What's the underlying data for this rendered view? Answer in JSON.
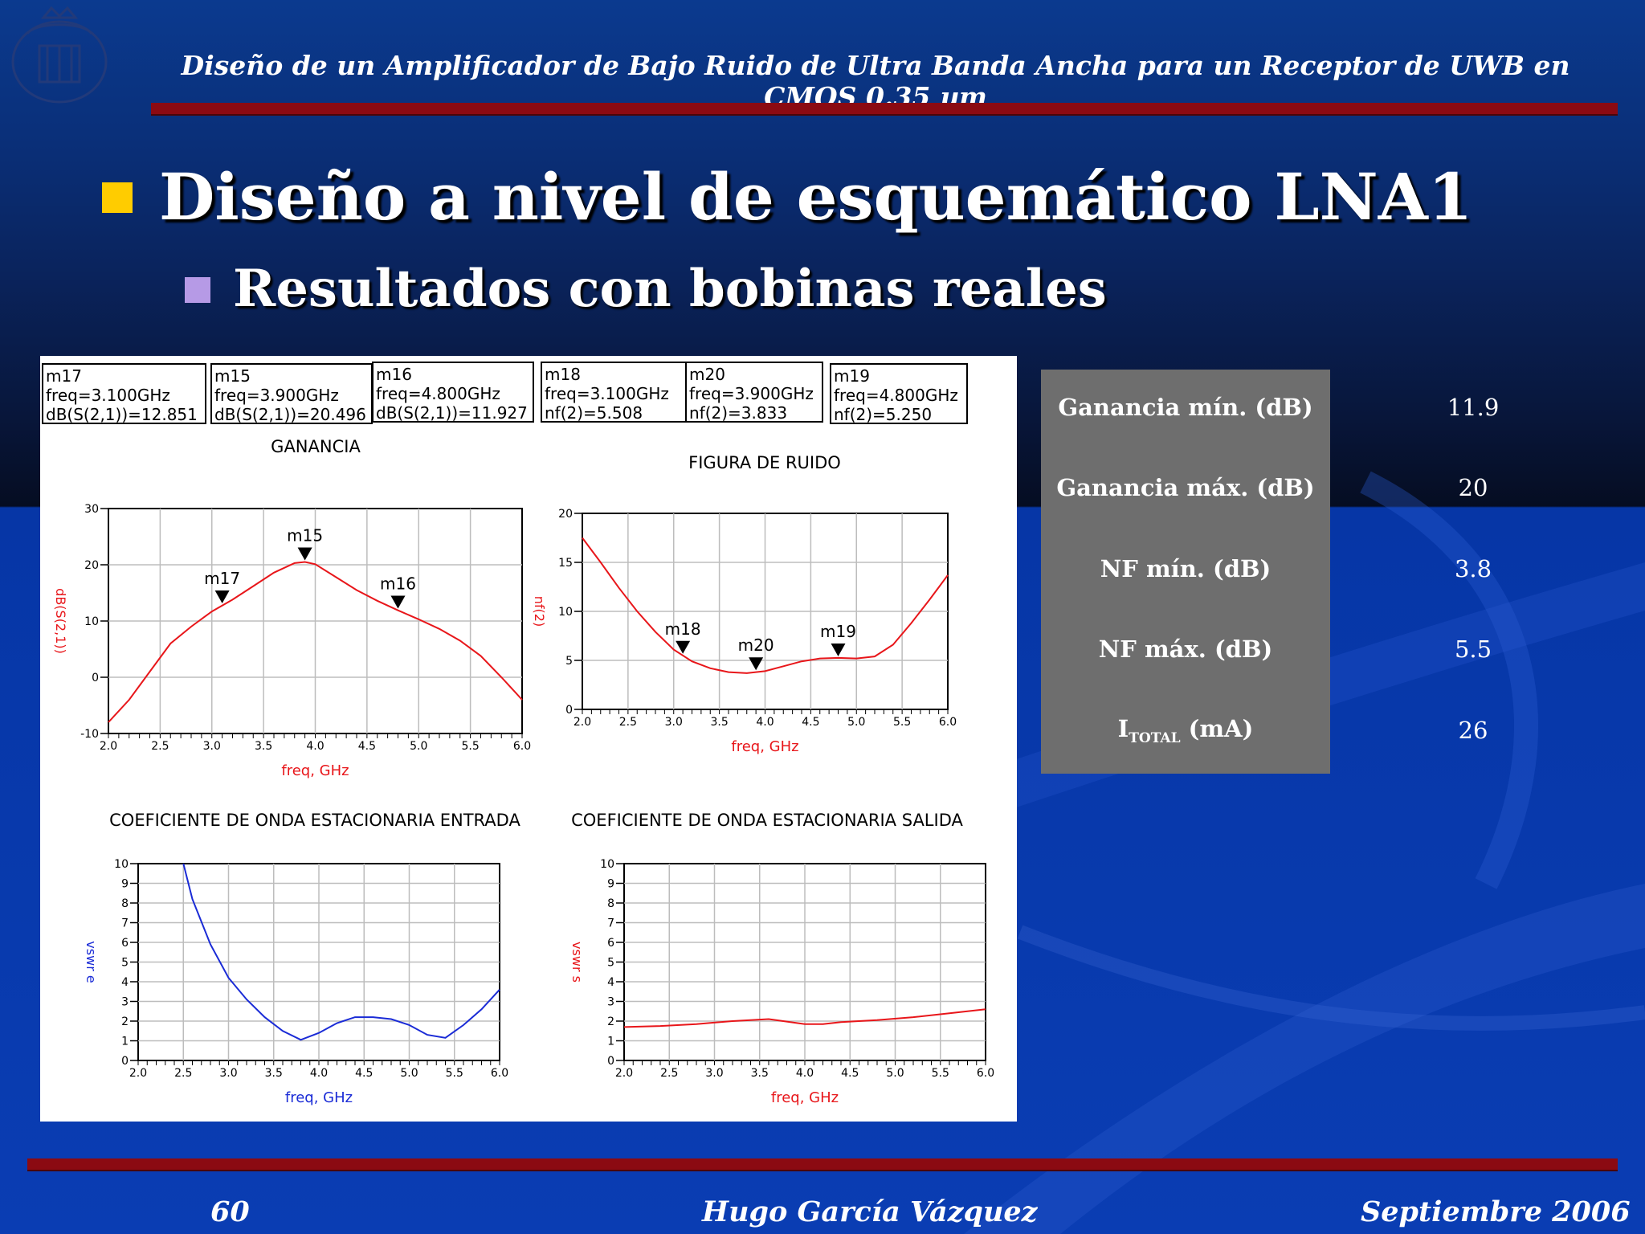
{
  "header": {
    "title": "Diseño de un Amplificador de Bajo Ruido de Ultra Banda Ancha para un Receptor de UWB en CMOS 0.35 µm"
  },
  "heading": "Diseño a nivel de esquemático LNA1",
  "subheading": "Resultados con bobinas reales",
  "markers": [
    {
      "name": "m17",
      "freq": "freq=3.100GHz",
      "val": "dB(S(2,1))=12.851"
    },
    {
      "name": "m15",
      "freq": "freq=3.900GHz",
      "val": "dB(S(2,1))=20.496"
    },
    {
      "name": "m16",
      "freq": "freq=4.800GHz",
      "val": "dB(S(2,1))=11.927"
    },
    {
      "name": "m18",
      "freq": "freq=3.100GHz",
      "val": "nf(2)=5.508"
    },
    {
      "name": "m20",
      "freq": "freq=3.900GHz",
      "val": "nf(2)=3.833"
    },
    {
      "name": "m19",
      "freq": "freq=4.800GHz",
      "val": "nf(2)=5.250"
    }
  ],
  "table": {
    "rows": [
      {
        "label": "Ganancia mín. (dB)",
        "value": "11.9"
      },
      {
        "label": "Ganancia máx. (dB)",
        "value": "20"
      },
      {
        "label": "NF mín. (dB)",
        "value": "3.8"
      },
      {
        "label": "NF máx. (dB)",
        "value": "5.5"
      }
    ],
    "itotal": {
      "main": "I",
      "sub": "TOTAL",
      "unit": " (mA)",
      "value": "26"
    }
  },
  "footer": {
    "page": "60",
    "author": "Hugo García Vázquez",
    "date": "Septiembre 2006"
  },
  "colors": {
    "red_trace": "#e8161a",
    "blue_trace": "#1a2bd6",
    "accent_bar": "#8b0a12"
  },
  "chart_data": [
    {
      "type": "line",
      "title": "GANANCIA",
      "xlabel": "freq, GHz",
      "ylabel": "dB(S(2,1))",
      "xlim": [
        2.0,
        6.0
      ],
      "ylim": [
        -10,
        30
      ],
      "xticks": [
        "2.0",
        "2.5",
        "3.0",
        "3.5",
        "4.0",
        "4.5",
        "5.0",
        "5.5",
        "6.0"
      ],
      "yticks": [
        "-10",
        "0",
        "10",
        "20",
        "30"
      ],
      "color": "#e8161a",
      "series": [
        {
          "x": [
            2.0,
            2.2,
            2.4,
            2.6,
            2.8,
            3.0,
            3.2,
            3.4,
            3.6,
            3.8,
            3.9,
            4.0,
            4.2,
            4.4,
            4.6,
            4.8,
            5.0,
            5.2,
            5.4,
            5.6,
            5.8,
            6.0
          ],
          "y": [
            -8,
            -4,
            1,
            6,
            9,
            11.7,
            13.8,
            16.2,
            18.6,
            20.3,
            20.5,
            20.1,
            17.8,
            15.5,
            13.6,
            11.9,
            10.3,
            8.6,
            6.5,
            3.8,
            0,
            -4
          ]
        }
      ],
      "markers": [
        {
          "name": "m17",
          "x": 3.1,
          "y": 12.851
        },
        {
          "name": "m15",
          "x": 3.9,
          "y": 20.496
        },
        {
          "name": "m16",
          "x": 4.8,
          "y": 11.927
        }
      ]
    },
    {
      "type": "line",
      "title": "FIGURA DE RUIDO",
      "xlabel": "freq, GHz",
      "ylabel": "nf(2)",
      "xlim": [
        2.0,
        6.0
      ],
      "ylim": [
        0,
        20
      ],
      "xticks": [
        "2.0",
        "2.5",
        "3.0",
        "3.5",
        "4.0",
        "4.5",
        "5.0",
        "5.5",
        "6.0"
      ],
      "yticks": [
        "0",
        "5",
        "10",
        "15",
        "20"
      ],
      "color": "#e8161a",
      "series": [
        {
          "x": [
            2.0,
            2.2,
            2.4,
            2.6,
            2.8,
            3.0,
            3.2,
            3.4,
            3.6,
            3.8,
            4.0,
            4.2,
            4.4,
            4.6,
            4.8,
            5.0,
            5.2,
            5.4,
            5.6,
            5.8,
            6.0
          ],
          "y": [
            17.5,
            15,
            12.4,
            10,
            7.9,
            6.1,
            4.9,
            4.2,
            3.8,
            3.7,
            3.9,
            4.4,
            4.9,
            5.2,
            5.25,
            5.2,
            5.4,
            6.6,
            8.8,
            11.2,
            13.7
          ]
        }
      ],
      "markers": [
        {
          "name": "m18",
          "x": 3.1,
          "y": 5.508
        },
        {
          "name": "m20",
          "x": 3.9,
          "y": 3.833
        },
        {
          "name": "m19",
          "x": 4.8,
          "y": 5.25
        }
      ]
    },
    {
      "type": "line",
      "title": "COEFICIENTE DE ONDA ESTACIONARIA ENTRADA",
      "xlabel": "freq, GHz",
      "ylabel": "vswr e",
      "xlim": [
        2.0,
        6.0
      ],
      "ylim": [
        0,
        10
      ],
      "xticks": [
        "2.0",
        "2.5",
        "3.0",
        "3.5",
        "4.0",
        "4.5",
        "5.0",
        "5.5",
        "6.0"
      ],
      "yticks": [
        "0",
        "1",
        "2",
        "3",
        "4",
        "5",
        "6",
        "7",
        "8",
        "9",
        "10"
      ],
      "color": "#1a2bd6",
      "series": [
        {
          "x": [
            2.5,
            2.6,
            2.8,
            3.0,
            3.2,
            3.4,
            3.6,
            3.8,
            4.0,
            4.2,
            4.4,
            4.6,
            4.8,
            5.0,
            5.2,
            5.4,
            5.6,
            5.8,
            6.0
          ],
          "y": [
            10,
            8.2,
            5.9,
            4.2,
            3.1,
            2.2,
            1.5,
            1.05,
            1.4,
            1.9,
            2.2,
            2.2,
            2.1,
            1.8,
            1.3,
            1.15,
            1.8,
            2.6,
            3.6
          ]
        }
      ]
    },
    {
      "type": "line",
      "title": "COEFICIENTE DE ONDA ESTACIONARIA SALIDA",
      "xlabel": "freq, GHz",
      "ylabel": "vswr s",
      "xlim": [
        2.0,
        6.0
      ],
      "ylim": [
        0,
        10
      ],
      "xticks": [
        "2.0",
        "2.5",
        "3.0",
        "3.5",
        "4.0",
        "4.5",
        "5.0",
        "5.5",
        "6.0"
      ],
      "yticks": [
        "0",
        "1",
        "2",
        "3",
        "4",
        "5",
        "6",
        "7",
        "8",
        "9",
        "10"
      ],
      "color": "#e8161a",
      "series": [
        {
          "x": [
            2.0,
            2.4,
            2.8,
            3.2,
            3.6,
            4.0,
            4.2,
            4.4,
            4.8,
            5.2,
            5.6,
            6.0
          ],
          "y": [
            1.7,
            1.75,
            1.85,
            2.0,
            2.1,
            1.85,
            1.85,
            1.95,
            2.05,
            2.2,
            2.4,
            2.6
          ]
        }
      ]
    }
  ]
}
